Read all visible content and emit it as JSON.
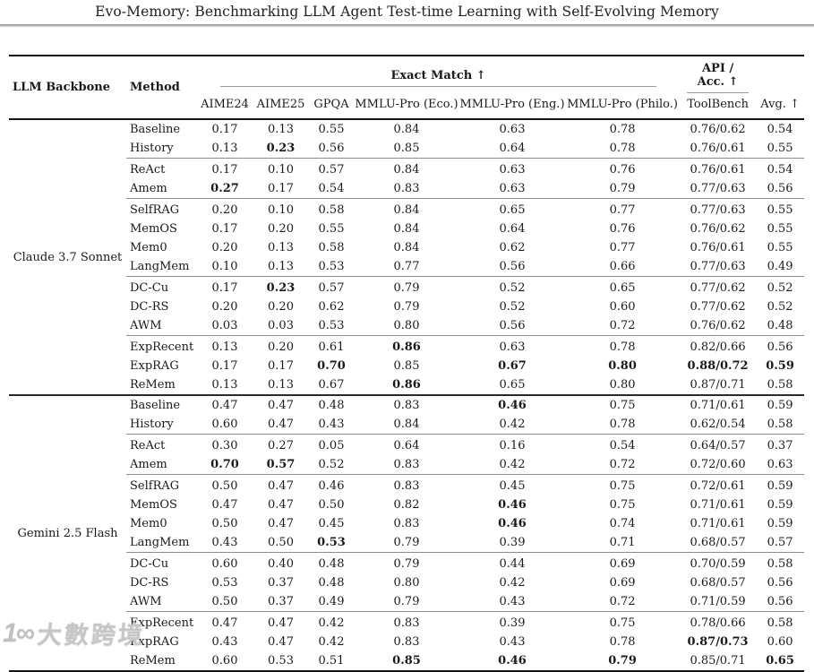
{
  "page_title": "Evo-Memory: Benchmarking LLM Agent Test-time Learning with Self-Evolving Memory",
  "colors": {
    "text": "#1a1a1a",
    "rule_heavy": "#141414",
    "rule_light": "#9a9a9a",
    "watermark": "#c3c3c3"
  },
  "watermark": {
    "icon": "logo-icon",
    "icon_glyph": "1∞",
    "text": "大數跨境"
  },
  "table": {
    "row_headers": [
      "LLM Backbone",
      "Method"
    ],
    "group_headers": [
      {
        "label": "Exact Match ↑",
        "span": 6
      },
      {
        "label": "API / Acc. ↑",
        "span": 1
      }
    ],
    "sub_headers": [
      "AIME24",
      "AIME25",
      "GPQA",
      "MMLU-Pro (Eco.)",
      "MMLU-Pro (Eng.)",
      "MMLU-Pro (Philo.)",
      "ToolBench"
    ],
    "avg_header": "Avg. ↑",
    "sections": [
      {
        "backbone": "Claude 3.7 Sonnet",
        "groups": [
          {
            "rows": [
              {
                "method": "Baseline",
                "values": [
                  "0.17",
                  "0.13",
                  "0.55",
                  "0.84",
                  "0.63",
                  "0.78",
                  "0.76/0.62",
                  "0.54"
                ],
                "bold": []
              },
              {
                "method": "History",
                "values": [
                  "0.13",
                  "0.23",
                  "0.56",
                  "0.85",
                  "0.64",
                  "0.78",
                  "0.76/0.61",
                  "0.55"
                ],
                "bold": [
                  1
                ]
              }
            ]
          },
          {
            "rows": [
              {
                "method": "ReAct",
                "values": [
                  "0.17",
                  "0.10",
                  "0.57",
                  "0.84",
                  "0.63",
                  "0.76",
                  "0.76/0.61",
                  "0.54"
                ],
                "bold": []
              },
              {
                "method": "Amem",
                "values": [
                  "0.27",
                  "0.17",
                  "0.54",
                  "0.83",
                  "0.63",
                  "0.79",
                  "0.77/0.63",
                  "0.56"
                ],
                "bold": [
                  0
                ]
              }
            ]
          },
          {
            "rows": [
              {
                "method": "SelfRAG",
                "values": [
                  "0.20",
                  "0.10",
                  "0.58",
                  "0.84",
                  "0.65",
                  "0.77",
                  "0.77/0.63",
                  "0.55"
                ],
                "bold": []
              },
              {
                "method": "MemOS",
                "values": [
                  "0.17",
                  "0.20",
                  "0.55",
                  "0.84",
                  "0.64",
                  "0.76",
                  "0.76/0.62",
                  "0.55"
                ],
                "bold": []
              },
              {
                "method": "Mem0",
                "values": [
                  "0.20",
                  "0.13",
                  "0.58",
                  "0.84",
                  "0.62",
                  "0.77",
                  "0.76/0.61",
                  "0.55"
                ],
                "bold": []
              },
              {
                "method": "LangMem",
                "values": [
                  "0.10",
                  "0.13",
                  "0.53",
                  "0.77",
                  "0.56",
                  "0.66",
                  "0.77/0.63",
                  "0.49"
                ],
                "bold": []
              }
            ]
          },
          {
            "rows": [
              {
                "method": "DC-Cu",
                "values": [
                  "0.17",
                  "0.23",
                  "0.57",
                  "0.79",
                  "0.52",
                  "0.65",
                  "0.77/0.62",
                  "0.52"
                ],
                "bold": [
                  1
                ]
              },
              {
                "method": "DC-RS",
                "values": [
                  "0.20",
                  "0.20",
                  "0.62",
                  "0.79",
                  "0.52",
                  "0.60",
                  "0.77/0.62",
                  "0.52"
                ],
                "bold": []
              },
              {
                "method": "AWM",
                "values": [
                  "0.03",
                  "0.03",
                  "0.53",
                  "0.80",
                  "0.56",
                  "0.72",
                  "0.76/0.62",
                  "0.48"
                ],
                "bold": []
              }
            ]
          },
          {
            "rows": [
              {
                "method": "ExpRecent",
                "values": [
                  "0.13",
                  "0.20",
                  "0.61",
                  "0.86",
                  "0.63",
                  "0.78",
                  "0.82/0.66",
                  "0.56"
                ],
                "bold": [
                  3
                ]
              },
              {
                "method": "ExpRAG",
                "values": [
                  "0.17",
                  "0.17",
                  "0.70",
                  "0.85",
                  "0.67",
                  "0.80",
                  "0.88/0.72",
                  "0.59"
                ],
                "bold": [
                  2,
                  4,
                  5,
                  6,
                  7
                ]
              },
              {
                "method": "ReMem",
                "values": [
                  "0.13",
                  "0.13",
                  "0.67",
                  "0.86",
                  "0.65",
                  "0.80",
                  "0.87/0.71",
                  "0.58"
                ],
                "bold": [
                  3
                ]
              }
            ]
          }
        ]
      },
      {
        "backbone": "Gemini 2.5 Flash",
        "groups": [
          {
            "rows": [
              {
                "method": "Baseline",
                "values": [
                  "0.47",
                  "0.47",
                  "0.48",
                  "0.83",
                  "0.46",
                  "0.75",
                  "0.71/0.61",
                  "0.59"
                ],
                "bold": [
                  4
                ]
              },
              {
                "method": "History",
                "values": [
                  "0.60",
                  "0.47",
                  "0.43",
                  "0.84",
                  "0.42",
                  "0.78",
                  "0.62/0.54",
                  "0.58"
                ],
                "bold": []
              }
            ]
          },
          {
            "rows": [
              {
                "method": "ReAct",
                "values": [
                  "0.30",
                  "0.27",
                  "0.05",
                  "0.64",
                  "0.16",
                  "0.54",
                  "0.64/0.57",
                  "0.37"
                ],
                "bold": []
              },
              {
                "method": "Amem",
                "values": [
                  "0.70",
                  "0.57",
                  "0.52",
                  "0.83",
                  "0.42",
                  "0.72",
                  "0.72/0.60",
                  "0.63"
                ],
                "bold": [
                  0,
                  1
                ]
              }
            ]
          },
          {
            "rows": [
              {
                "method": "SelfRAG",
                "values": [
                  "0.50",
                  "0.47",
                  "0.46",
                  "0.83",
                  "0.45",
                  "0.75",
                  "0.72/0.61",
                  "0.59"
                ],
                "bold": []
              },
              {
                "method": "MemOS",
                "values": [
                  "0.47",
                  "0.47",
                  "0.50",
                  "0.82",
                  "0.46",
                  "0.75",
                  "0.71/0.61",
                  "0.59"
                ],
                "bold": [
                  4
                ]
              },
              {
                "method": "Mem0",
                "values": [
                  "0.50",
                  "0.47",
                  "0.45",
                  "0.83",
                  "0.46",
                  "0.74",
                  "0.71/0.61",
                  "0.59"
                ],
                "bold": [
                  4
                ]
              },
              {
                "method": "LangMem",
                "values": [
                  "0.43",
                  "0.50",
                  "0.53",
                  "0.79",
                  "0.39",
                  "0.71",
                  "0.68/0.57",
                  "0.57"
                ],
                "bold": [
                  2
                ]
              }
            ]
          },
          {
            "rows": [
              {
                "method": "DC-Cu",
                "values": [
                  "0.60",
                  "0.40",
                  "0.48",
                  "0.79",
                  "0.44",
                  "0.69",
                  "0.70/0.59",
                  "0.58"
                ],
                "bold": []
              },
              {
                "method": "DC-RS",
                "values": [
                  "0.53",
                  "0.37",
                  "0.48",
                  "0.80",
                  "0.42",
                  "0.69",
                  "0.68/0.57",
                  "0.56"
                ],
                "bold": []
              },
              {
                "method": "AWM",
                "values": [
                  "0.50",
                  "0.37",
                  "0.49",
                  "0.79",
                  "0.43",
                  "0.72",
                  "0.71/0.59",
                  "0.56"
                ],
                "bold": []
              }
            ]
          },
          {
            "rows": [
              {
                "method": "ExpRecent",
                "values": [
                  "0.47",
                  "0.47",
                  "0.42",
                  "0.83",
                  "0.39",
                  "0.75",
                  "0.78/0.66",
                  "0.58"
                ],
                "bold": []
              },
              {
                "method": "ExpRAG",
                "values": [
                  "0.43",
                  "0.47",
                  "0.42",
                  "0.83",
                  "0.43",
                  "0.78",
                  "0.87/0.73",
                  "0.60"
                ],
                "bold": [
                  6
                ]
              },
              {
                "method": "ReMem",
                "values": [
                  "0.60",
                  "0.53",
                  "0.51",
                  "0.85",
                  "0.46",
                  "0.79",
                  "0.85/0.71",
                  "0.65"
                ],
                "bold": [
                  3,
                  4,
                  5,
                  7
                ]
              }
            ]
          }
        ]
      }
    ]
  }
}
